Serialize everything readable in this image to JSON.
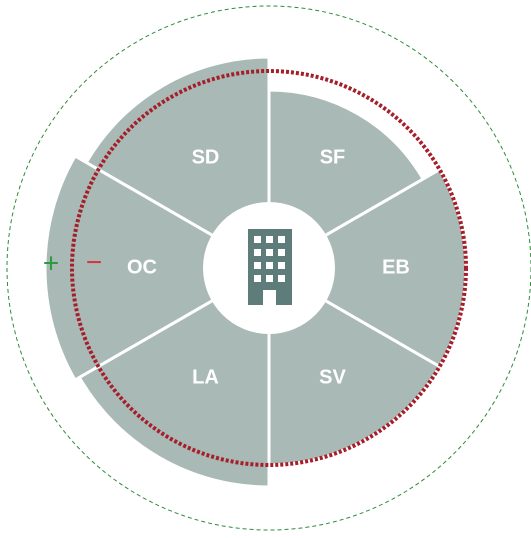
{
  "segments": [
    {
      "label": "SF"
    },
    {
      "label": "SD"
    },
    {
      "label": "OC"
    },
    {
      "label": "LA"
    },
    {
      "label": "SV"
    },
    {
      "label": "EB"
    }
  ],
  "controls": {
    "plus": "+",
    "minus": "−"
  }
}
